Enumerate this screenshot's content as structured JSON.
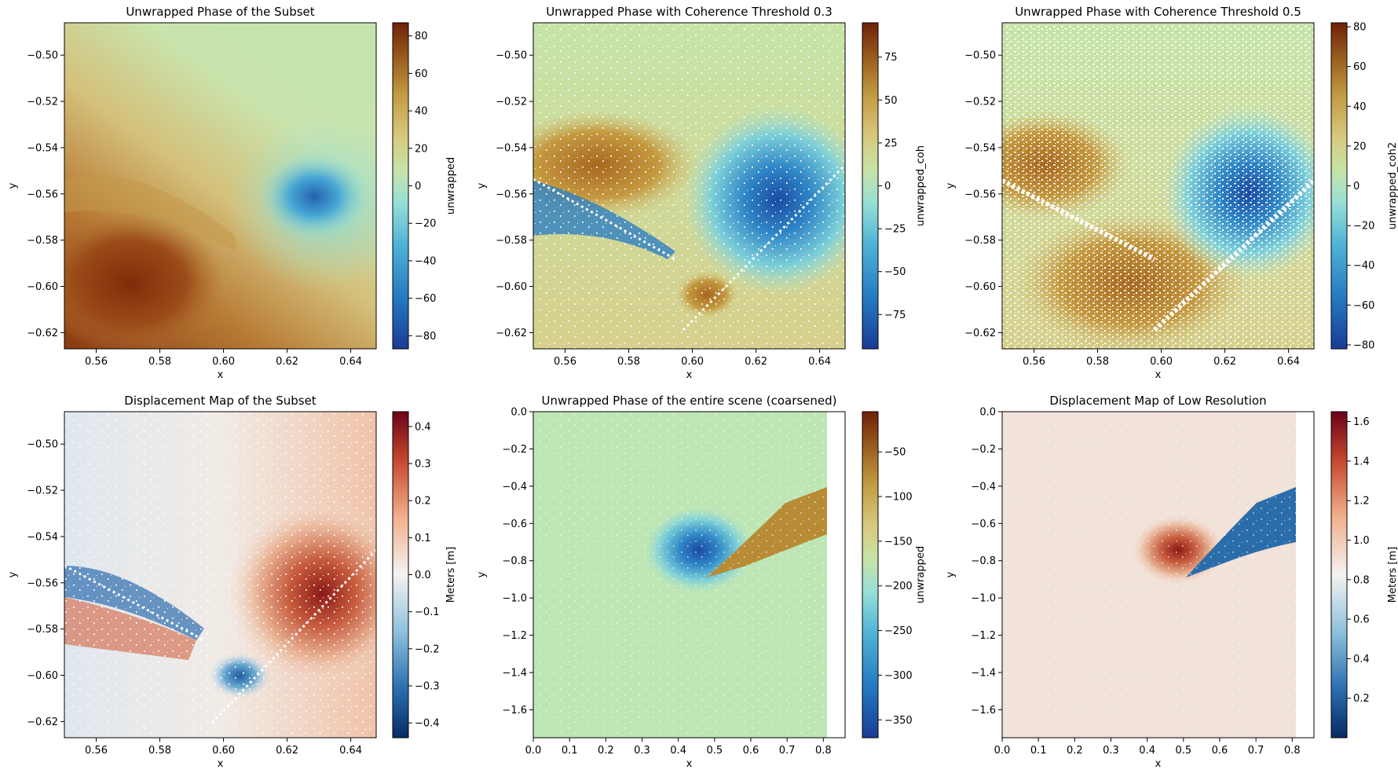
{
  "chart_data": [
    {
      "type": "heatmap",
      "title": "Unwrapped Phase of the Subset",
      "xlabel": "x",
      "ylabel": "y",
      "xlim": [
        0.55,
        0.648
      ],
      "ylim": [
        -0.627,
        -0.486
      ],
      "xticks": [
        "0.56",
        "0.58",
        "0.60",
        "0.62",
        "0.64"
      ],
      "yticks": [
        "−0.50",
        "−0.52",
        "−0.54",
        "−0.56",
        "−0.58",
        "−0.60",
        "−0.62"
      ],
      "colorbar": {
        "label": "unwrapped",
        "range": [
          -87,
          87
        ],
        "ticks": [
          "80",
          "60",
          "40",
          "20",
          "0",
          "−20",
          "−40",
          "−60",
          "−80"
        ],
        "colormap": "RdYlBu_like_brown_teal_blue"
      },
      "features": {
        "masked": false,
        "high_region": "lower-left",
        "low_region": "right-center"
      }
    },
    {
      "type": "heatmap",
      "title": "Unwrapped Phase with Coherence Threshold 0.3",
      "xlabel": "x",
      "ylabel": "y",
      "xlim": [
        0.55,
        0.648
      ],
      "ylim": [
        -0.627,
        -0.486
      ],
      "xticks": [
        "0.56",
        "0.58",
        "0.60",
        "0.62",
        "0.64"
      ],
      "yticks": [
        "−0.50",
        "−0.52",
        "−0.54",
        "−0.56",
        "−0.58",
        "−0.60",
        "−0.62"
      ],
      "colorbar": {
        "label": "unwrapped_coh",
        "range": [
          -95,
          95
        ],
        "ticks": [
          "75",
          "50",
          "25",
          "0",
          "−25",
          "−50",
          "−75"
        ]
      },
      "features": {
        "masked": true,
        "mask_density": "low"
      }
    },
    {
      "type": "heatmap",
      "title": "Unwrapped Phase with Coherence Threshold 0.5",
      "xlabel": "x",
      "ylabel": "y",
      "xlim": [
        0.55,
        0.648
      ],
      "ylim": [
        -0.627,
        -0.486
      ],
      "xticks": [
        "0.56",
        "0.58",
        "0.60",
        "0.62",
        "0.64"
      ],
      "yticks": [
        "−0.50",
        "−0.52",
        "−0.54",
        "−0.56",
        "−0.58",
        "−0.60",
        "−0.62"
      ],
      "colorbar": {
        "label": "unwrapped_coh2",
        "range": [
          -82,
          82
        ],
        "ticks": [
          "80",
          "60",
          "40",
          "20",
          "0",
          "−20",
          "−40",
          "−60",
          "−80"
        ]
      },
      "features": {
        "masked": true,
        "mask_density": "high"
      }
    },
    {
      "type": "heatmap",
      "title": "Displacement Map of the Subset",
      "xlabel": "x",
      "ylabel": "y",
      "xlim": [
        0.55,
        0.648
      ],
      "ylim": [
        -0.627,
        -0.486
      ],
      "xticks": [
        "0.56",
        "0.58",
        "0.60",
        "0.62",
        "0.64"
      ],
      "yticks": [
        "−0.50",
        "−0.52",
        "−0.54",
        "−0.56",
        "−0.58",
        "−0.60",
        "−0.62"
      ],
      "colorbar": {
        "label": "Meters [m]",
        "range": [
          -0.44,
          0.44
        ],
        "ticks": [
          "0.4",
          "0.3",
          "0.2",
          "0.1",
          "0.0",
          "−0.1",
          "−0.2",
          "−0.3",
          "−0.4"
        ],
        "colormap": "RdBu_r"
      },
      "features": {
        "masked": true,
        "mask_density": "low"
      }
    },
    {
      "type": "heatmap",
      "title": "Unwrapped Phase of the entire scene (coarsened)",
      "xlabel": "x",
      "ylabel": "y",
      "xlim": [
        0.0,
        0.86
      ],
      "ylim": [
        -1.75,
        0.0
      ],
      "xticks": [
        "0.0",
        "0.1",
        "0.2",
        "0.3",
        "0.4",
        "0.5",
        "0.6",
        "0.7",
        "0.8"
      ],
      "yticks": [
        "0.0",
        "−0.2",
        "−0.4",
        "−0.6",
        "−0.8",
        "−1.0",
        "−1.2",
        "−1.4",
        "−1.6"
      ],
      "colorbar": {
        "label": "unwrapped",
        "range": [
          -370,
          -5
        ],
        "ticks": [
          "−50",
          "−100",
          "−150",
          "−200",
          "−250",
          "−300",
          "−350"
        ]
      },
      "features": {
        "data_x_extent": [
          0.0,
          0.81
        ]
      }
    },
    {
      "type": "heatmap",
      "title": "Displacement Map of Low Resolution",
      "xlabel": "x",
      "ylabel": "y",
      "xlim": [
        0.0,
        0.86
      ],
      "ylim": [
        -1.75,
        0.0
      ],
      "xticks": [
        "0.0",
        "0.1",
        "0.2",
        "0.3",
        "0.4",
        "0.5",
        "0.6",
        "0.7",
        "0.8"
      ],
      "yticks": [
        "0.0",
        "−0.2",
        "−0.4",
        "−0.6",
        "−0.8",
        "−1.0",
        "−1.2",
        "−1.4",
        "−1.6"
      ],
      "colorbar": {
        "label": "Meters [m]",
        "range": [
          0.0,
          1.65
        ],
        "ticks": [
          "1.6",
          "1.4",
          "1.2",
          "1.0",
          "0.8",
          "0.6",
          "0.4",
          "0.2"
        ],
        "colormap": "RdBu_r"
      },
      "features": {
        "data_x_extent": [
          0.0,
          0.81
        ]
      }
    }
  ]
}
